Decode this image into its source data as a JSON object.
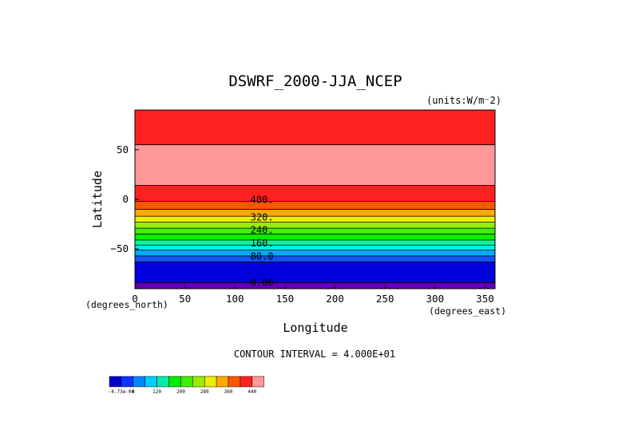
{
  "chart_data": {
    "type": "contour",
    "title": "DSWRF_2000-JJA_NCEP",
    "units": "(units:W/m⁻2)",
    "xlabel": "Longitude",
    "ylabel": "Latitude",
    "x_unit_note": "(degrees_east)",
    "y_unit_note": "(degrees_north)",
    "xlim": [
      0,
      360
    ],
    "ylim": [
      -90,
      90
    ],
    "xticks": [
      0,
      50,
      100,
      150,
      200,
      250,
      300,
      350
    ],
    "yticks": [
      50,
      0,
      -50
    ],
    "ytick_labels": [
      "50",
      "0",
      "−50"
    ],
    "contour_interval_text": "CONTOUR INTERVAL = 4.000E+01",
    "bands": [
      {
        "lat_from": 55,
        "lat_to": 90,
        "color": "#ff2020"
      },
      {
        "lat_from": 14,
        "lat_to": 55,
        "color": "#ff9999"
      },
      {
        "lat_from": -2,
        "lat_to": 14,
        "color": "#ff2020"
      },
      {
        "lat_from": -10,
        "lat_to": -2,
        "color": "#ff5500"
      },
      {
        "lat_from": -17,
        "lat_to": -10,
        "color": "#ffaa00"
      },
      {
        "lat_from": -23,
        "lat_to": -17,
        "color": "#eeee00"
      },
      {
        "lat_from": -29,
        "lat_to": -23,
        "color": "#99ee00"
      },
      {
        "lat_from": -35,
        "lat_to": -29,
        "color": "#44ee00"
      },
      {
        "lat_from": -41,
        "lat_to": -35,
        "color": "#00ee00"
      },
      {
        "lat_from": -46,
        "lat_to": -41,
        "color": "#00ff99"
      },
      {
        "lat_from": -51,
        "lat_to": -46,
        "color": "#00eeee"
      },
      {
        "lat_from": -57,
        "lat_to": -51,
        "color": "#00aaff"
      },
      {
        "lat_from": -63,
        "lat_to": -57,
        "color": "#1155ff"
      },
      {
        "lat_from": -84,
        "lat_to": -63,
        "color": "#0000dd"
      },
      {
        "lat_from": -90,
        "lat_to": -84,
        "color": "#6600aa"
      }
    ],
    "contour_lines": [
      55,
      14,
      -2,
      -10,
      -17,
      -23,
      -29,
      -35,
      -41,
      -46,
      -51,
      -57,
      -63,
      -84
    ],
    "contour_labels": [
      {
        "text": "400.",
        "lat": -0.5
      },
      {
        "text": "320.",
        "lat": -18
      },
      {
        "text": "240.",
        "lat": -31
      },
      {
        "text": "160.",
        "lat": -44
      },
      {
        "text": "80.0",
        "lat": -57.5
      },
      {
        "text": "0.00",
        "lat": -84
      }
    ],
    "colorbar": {
      "colors": [
        "#0000cc",
        "#1133ff",
        "#0088ff",
        "#00ccff",
        "#00eeaa",
        "#00ee00",
        "#44ee00",
        "#99ee00",
        "#eeee00",
        "#ffaa00",
        "#ff5500",
        "#ff2020",
        "#ff9999"
      ],
      "labels": [
        {
          "text": "-4.73e-04",
          "index": 0
        },
        {
          "text": "0",
          "index": 1
        },
        {
          "text": "120",
          "index": 3
        },
        {
          "text": "200",
          "index": 5
        },
        {
          "text": "280",
          "index": 7
        },
        {
          "text": "360",
          "index": 9
        },
        {
          "text": "440",
          "index": 11
        }
      ]
    }
  }
}
